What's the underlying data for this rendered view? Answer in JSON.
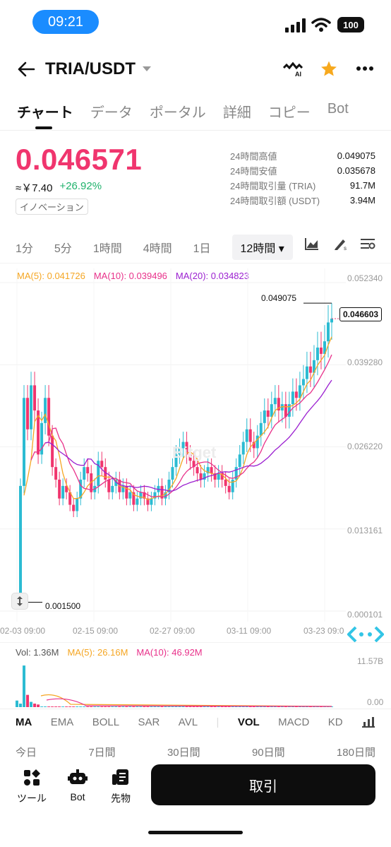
{
  "status_bar": {
    "time": "09:21",
    "battery": "100"
  },
  "header": {
    "pair": "TRIA/USDT"
  },
  "tabs": [
    "チャート",
    "データ",
    "ポータル",
    "詳細",
    "コピー",
    "Bot"
  ],
  "ticker": {
    "price": "0.046571",
    "cny": "≈￥7.40",
    "change": "+26.92%",
    "tag": "イノベーション",
    "stats": [
      {
        "label": "24時間高値",
        "value": "0.049075"
      },
      {
        "label": "24時間安値",
        "value": "0.035678"
      },
      {
        "label": "24時間取引量 (TRIA)",
        "value": "91.7M"
      },
      {
        "label": "24時間取引額 (USDT)",
        "value": "3.94M"
      }
    ]
  },
  "intervals": [
    "1分",
    "5分",
    "1時間",
    "4時間",
    "1日",
    "12時間 ▾"
  ],
  "ma": {
    "ma5": "MA(5): 0.041726",
    "ma10": "MA(10): 0.039496",
    "ma20": "MA(20): 0.034823"
  },
  "price_axis": [
    "0.052340",
    "0.039280",
    "0.026220",
    "0.013161",
    "0.000101"
  ],
  "markers": {
    "high": "0.049075",
    "low": "0.001500",
    "last": "0.046603"
  },
  "watermark": "Bitget",
  "date_axis": [
    "02-03 09:00",
    "02-15 09:00",
    "02-27 09:00",
    "03-11 09:00",
    "03-23 09:0"
  ],
  "volume": {
    "vol": "Vol: 1.36M",
    "ma5": "MA(5): 26.16M",
    "ma10": "MA(10): 46.92M",
    "top": "11.57B",
    "bottom": "0.00"
  },
  "indicator_tabs": [
    "MA",
    "EMA",
    "BOLL",
    "SAR",
    "AVL",
    "VOL",
    "MACD",
    "KD"
  ],
  "ranges": [
    "今日",
    "7日間",
    "30日間",
    "90日間",
    "180日間"
  ],
  "bottom": {
    "tools": "ツール",
    "bot": "Bot",
    "futures": "先物",
    "trade": "取引"
  },
  "colors": {
    "up": "#2bbbd2",
    "down": "#f0356e",
    "ma5": "#f5a623",
    "ma10": "#e8318a",
    "ma20": "#9b1fd0"
  },
  "chart_data": {
    "type": "candlestick",
    "interval": "12時間",
    "x_range": [
      "02-03 09:00",
      "03-23 09:00"
    ],
    "ylim": [
      0.000101,
      0.05234
    ],
    "closes": [
      0.0015,
      0.02,
      0.034,
      0.029,
      0.036,
      0.032,
      0.025,
      0.03,
      0.034,
      0.028,
      0.023,
      0.021,
      0.018,
      0.02,
      0.019,
      0.017,
      0.016,
      0.018,
      0.021,
      0.023,
      0.022,
      0.019,
      0.02,
      0.024,
      0.023,
      0.021,
      0.019,
      0.02,
      0.021,
      0.019,
      0.02,
      0.018,
      0.019,
      0.017,
      0.018,
      0.019,
      0.018,
      0.017,
      0.018,
      0.019,
      0.02,
      0.018,
      0.019,
      0.021,
      0.023,
      0.025,
      0.026,
      0.027,
      0.025,
      0.024,
      0.023,
      0.022,
      0.021,
      0.022,
      0.023,
      0.022,
      0.021,
      0.022,
      0.021,
      0.02,
      0.019,
      0.021,
      0.023,
      0.025,
      0.027,
      0.029,
      0.027,
      0.026,
      0.028,
      0.03,
      0.032,
      0.031,
      0.033,
      0.034,
      0.032,
      0.033,
      0.031,
      0.033,
      0.035,
      0.034,
      0.036,
      0.037,
      0.039,
      0.038,
      0.04,
      0.042,
      0.041,
      0.043,
      0.046,
      0.0466
    ]
  }
}
